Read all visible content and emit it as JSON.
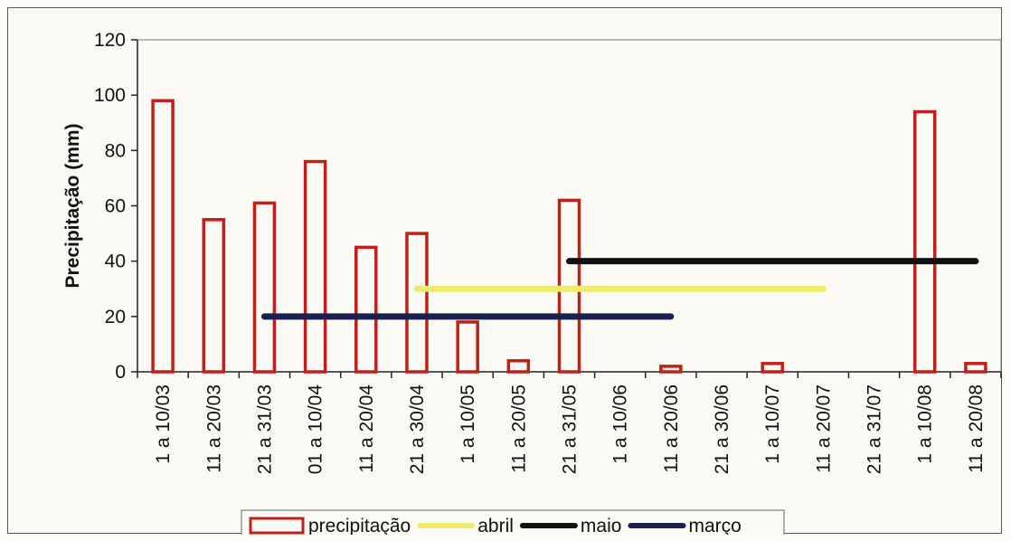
{
  "chart_data": {
    "type": "bar",
    "title": "",
    "xlabel": "",
    "ylabel": "Precipitação (mm)",
    "ylim": [
      0,
      120
    ],
    "yticks": [
      "0",
      "20",
      "40",
      "60",
      "80",
      "100",
      "120"
    ],
    "grid": false,
    "legend_position": "bottom",
    "categories": [
      "1 a 10/03",
      "11 a 20/03",
      "21 a 31/03",
      "01 a 10/04",
      "11 a 20/04",
      "21 a 30/04",
      "1 a 10/05",
      "11 a 20/05",
      "21 a 31/05",
      "1 a 10/06",
      "11 a 20/06",
      "21 a 30/06",
      "1 a 10/07",
      "11 a 20/07",
      "21 a 31/07",
      "1 a 10/08",
      "11 a 20/08"
    ],
    "series": [
      {
        "name": "precipitação",
        "type": "bar",
        "color": "#c0201a",
        "values": [
          98,
          55,
          61,
          76,
          45,
          50,
          18,
          4,
          62,
          0,
          2,
          0,
          3,
          0,
          0,
          94,
          3
        ]
      },
      {
        "name": "abril",
        "type": "line",
        "color": "#f0ea70",
        "start_category": "21 a 30/04",
        "end_category": "11 a 20/07",
        "value": 30
      },
      {
        "name": "maio",
        "type": "line",
        "color": "#111111",
        "start_category": "21 a 31/05",
        "end_category": "11 a 20/08",
        "value": 40
      },
      {
        "name": "março",
        "type": "line",
        "color": "#1a2050",
        "start_category": "21 a 31/03",
        "end_category": "11 a 20/06",
        "value": 20
      }
    ]
  }
}
